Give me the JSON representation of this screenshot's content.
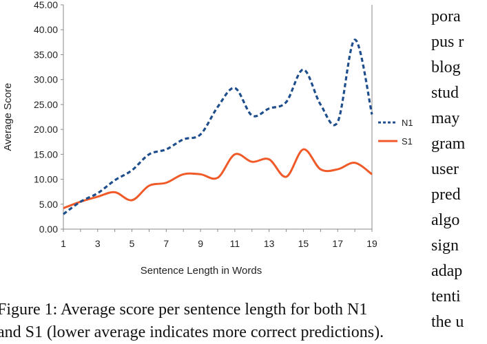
{
  "chart_data": {
    "type": "line",
    "x": [
      1,
      2,
      3,
      4,
      5,
      6,
      7,
      8,
      9,
      10,
      11,
      12,
      13,
      14,
      15,
      16,
      17,
      18,
      19
    ],
    "xticks": [
      "1",
      "3",
      "5",
      "7",
      "9",
      "11",
      "13",
      "15",
      "17",
      "19"
    ],
    "yticks": [
      "0.00",
      "5.00",
      "10.00",
      "15.00",
      "20.00",
      "25.00",
      "30.00",
      "35.00",
      "40.00",
      "45.00"
    ],
    "xlim": [
      1,
      19
    ],
    "ylim": [
      0,
      45
    ],
    "xlabel": "Sentence Length in Words",
    "ylabel": "Average Score",
    "legend_position": "right",
    "series": [
      {
        "name": "N1",
        "color": "#1f4e8c",
        "style": "dashed",
        "values": [
          3.0,
          5.5,
          7.2,
          9.8,
          11.8,
          15.0,
          16.0,
          18.0,
          19.0,
          24.5,
          28.3,
          22.8,
          24.2,
          25.5,
          32.0,
          25.0,
          21.5,
          38.0,
          23.0
        ]
      },
      {
        "name": "S1",
        "color": "#f05a28",
        "style": "solid",
        "values": [
          4.2,
          5.5,
          6.5,
          7.4,
          5.8,
          8.7,
          9.3,
          11.0,
          11.0,
          10.3,
          15.0,
          13.5,
          14.0,
          10.5,
          16.0,
          12.0,
          12.0,
          13.3,
          11.0
        ]
      }
    ],
    "gridlines": false
  },
  "caption": {
    "line1": "Figure 1:  Average score per sentence length for both N1",
    "line2": "and S1 (lower average indicates more correct predictions)."
  },
  "side_text": [
    "pora",
    "pus r",
    "blog",
    "stud",
    "may",
    "gram",
    "user",
    "pred",
    "algo",
    "sign",
    "adap",
    "tenti",
    "the u"
  ]
}
